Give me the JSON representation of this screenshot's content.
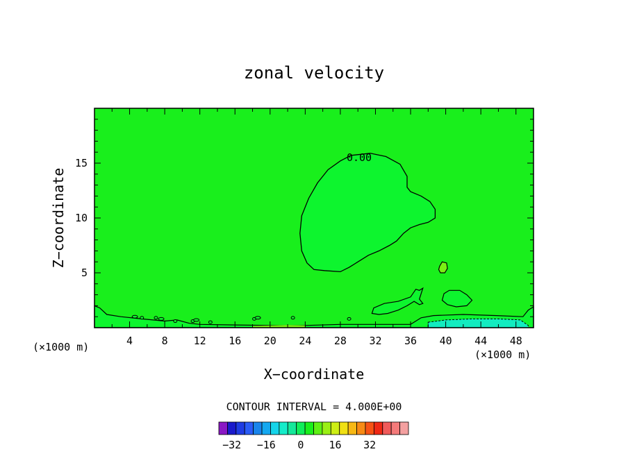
{
  "chart_data": {
    "type": "heatmap",
    "title": "zonal velocity",
    "xlabel": "X−coordinate",
    "ylabel": "Z−coordinate",
    "x_unit_left": "(×1000 m)",
    "x_unit_right": "(×1000 m)",
    "xlim": [
      0,
      50
    ],
    "ylim": [
      0,
      20
    ],
    "x_ticks": [
      4,
      8,
      12,
      16,
      20,
      24,
      28,
      32,
      36,
      40,
      44,
      48
    ],
    "y_ticks": [
      5,
      10,
      15
    ],
    "background_color": "#19ef1c",
    "contour_label": "0.00",
    "contour_interval_text": "CONTOUR INTERVAL = 4.000E+00",
    "colorbar": {
      "tick_labels": [
        "−32",
        "−16",
        "0",
        "16",
        "32"
      ],
      "tick_values": [
        -32,
        -16,
        0,
        16,
        32
      ],
      "colors": [
        "#8a18c4",
        "#1a1acb",
        "#1f3ce3",
        "#2a5cf7",
        "#1985ec",
        "#14a8f0",
        "#14d4ea",
        "#14ecc9",
        "#14e89a",
        "#10ee5a",
        "#19ef1c",
        "#5ef014",
        "#9aef14",
        "#cdee14",
        "#f0e014",
        "#f7b814",
        "#f78a14",
        "#f75214",
        "#ef2814",
        "#f05a5a",
        "#f47a7a",
        "#f3a0a0"
      ],
      "edges": [
        -38,
        -34,
        -30,
        -26,
        -22,
        -18,
        -14,
        -10,
        -6,
        -2,
        2,
        6,
        10,
        14,
        18,
        22,
        26,
        30,
        34,
        38,
        42,
        46,
        50
      ]
    }
  }
}
